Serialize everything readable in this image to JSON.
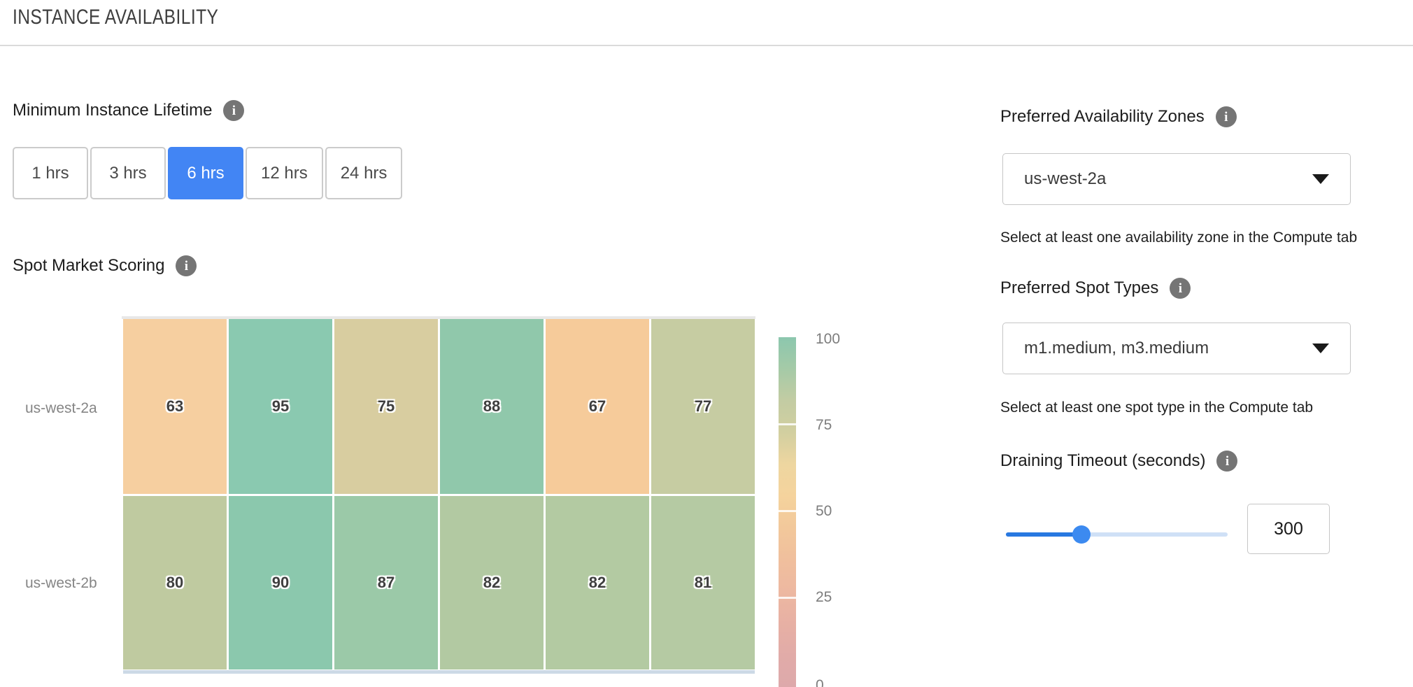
{
  "page": {
    "title": "INSTANCE AVAILABILITY"
  },
  "lifetime": {
    "label": "Minimum Instance Lifetime",
    "selected": "6 hrs",
    "options": [
      "1 hrs",
      "3 hrs",
      "6 hrs",
      "12 hrs",
      "24 hrs"
    ]
  },
  "chart_data": {
    "type": "heatmap",
    "title": "Spot Market Scoring",
    "rows": [
      "us-west-2a",
      "us-west-2b"
    ],
    "num_columns": 6,
    "values": [
      [
        63,
        95,
        75,
        88,
        67,
        77
      ],
      [
        80,
        90,
        87,
        82,
        82,
        81
      ]
    ],
    "cell_colors": [
      [
        "#f6cfa0",
        "#8ac9b0",
        "#d8cda0",
        "#90c8ab",
        "#f6cb9a",
        "#c6cca2"
      ],
      [
        "#bfcaa0",
        "#8bc8ad",
        "#9bc9a8",
        "#b2c9a2",
        "#b3caa2",
        "#b5caa3"
      ]
    ],
    "colorbar": {
      "range": [
        0,
        100
      ],
      "ticks": [
        100,
        75,
        50,
        25,
        0
      ],
      "gradient": [
        "#8cc7ae",
        "#a5caa7",
        "#c3cca3",
        "#d2cfa0",
        "#eed6a0",
        "#f5d39d",
        "#f2c89b",
        "#f0bf9d",
        "#edb8a1",
        "#e7b0a4",
        "#e1aba8",
        "#dda9ab"
      ]
    }
  },
  "zones": {
    "label": "Preferred Availability Zones",
    "value": "us-west-2a",
    "helper": "Select at least one availability zone in the Compute tab"
  },
  "spot_types": {
    "label": "Preferred Spot Types",
    "value": "m1.medium, m3.medium",
    "helper": "Select at least one spot type in the Compute tab"
  },
  "draining": {
    "label": "Draining Timeout (seconds)",
    "value": "300",
    "slider_percent": 34
  },
  "colors": {
    "accent_blue": "#4285f4",
    "slider_fill": "#2878e0",
    "slider_track": "#cfe0f6",
    "slider_thumb": "#3c8af0",
    "info_icon_bg": "#757575",
    "heatmap_axis_strip": "#ccd9e6"
  },
  "icons": {
    "info": "i",
    "dropdown_caret": "triangle-down"
  }
}
